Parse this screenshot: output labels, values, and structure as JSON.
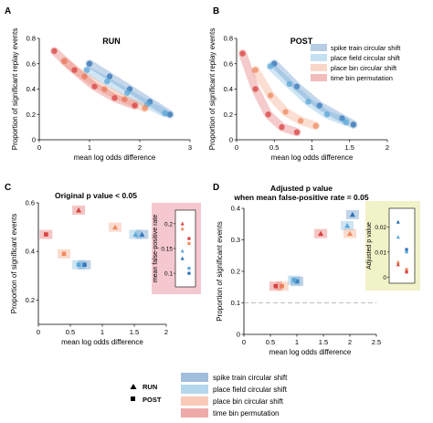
{
  "colors": {
    "spike": "#2e6fb3",
    "place_field": "#5aa7d8",
    "place_bin": "#ef8a5f",
    "time_bin": "#d94040",
    "inset_c_bg": "#f5c8cf",
    "inset_d_bg": "#f0f2c8"
  },
  "legend": {
    "series": [
      "spike train circular shift",
      "place field circular shift",
      "place bin circular shift",
      "time bin permutation"
    ],
    "markers": [
      "RUN",
      "POST"
    ],
    "marker_symbols": [
      "triangle",
      "square"
    ]
  },
  "chart_data": [
    {
      "panel": "A",
      "type": "scatter",
      "title": "RUN",
      "xlabel": "mean log odds difference",
      "ylabel": "Proportion of significant replay events",
      "xlim": [
        0,
        3
      ],
      "ylim": [
        0,
        0.8
      ],
      "xticks": [
        "0",
        "1",
        "2",
        "3"
      ],
      "yticks": [
        "0",
        "0.2",
        "0.4",
        "0.6",
        "0.8"
      ],
      "series": [
        {
          "name": "spike train circular shift",
          "x": [
            1.0,
            1.4,
            1.8,
            2.2,
            2.6
          ],
          "y": [
            0.6,
            0.5,
            0.4,
            0.3,
            0.2
          ]
        },
        {
          "name": "place field circular shift",
          "x": [
            0.95,
            1.35,
            1.75,
            2.15,
            2.5
          ],
          "y": [
            0.55,
            0.46,
            0.37,
            0.28,
            0.21
          ]
        },
        {
          "name": "place bin circular shift",
          "x": [
            0.5,
            0.9,
            1.3,
            1.7,
            2.1
          ],
          "y": [
            0.62,
            0.5,
            0.4,
            0.32,
            0.25
          ]
        },
        {
          "name": "time bin permutation",
          "x": [
            0.3,
            0.7,
            1.1,
            1.5,
            1.9
          ],
          "y": [
            0.7,
            0.55,
            0.42,
            0.33,
            0.27
          ]
        }
      ],
      "legend_position": "top-right"
    },
    {
      "panel": "B",
      "type": "scatter",
      "title": "POST",
      "xlabel": "mean log odds difference",
      "ylabel": "Proportion of significant replay events",
      "xlim": [
        0,
        2
      ],
      "ylim": [
        0,
        0.8
      ],
      "xticks": [
        "0",
        "0.5",
        "1",
        "1.5",
        "2"
      ],
      "yticks": [
        "0",
        "0.2",
        "0.4",
        "0.6",
        "0.8"
      ],
      "series": [
        {
          "name": "spike train circular shift",
          "x": [
            0.5,
            0.8,
            1.1,
            1.4,
            1.55
          ],
          "y": [
            0.6,
            0.42,
            0.27,
            0.17,
            0.12
          ]
        },
        {
          "name": "place field circular shift",
          "x": [
            0.45,
            0.7,
            0.95,
            1.2,
            1.45
          ],
          "y": [
            0.58,
            0.44,
            0.3,
            0.2,
            0.14
          ]
        },
        {
          "name": "place bin circular shift",
          "x": [
            0.25,
            0.45,
            0.65,
            0.85,
            1.05
          ],
          "y": [
            0.55,
            0.35,
            0.22,
            0.15,
            0.11
          ]
        },
        {
          "name": "time bin permutation",
          "x": [
            0.08,
            0.25,
            0.42,
            0.6,
            0.8
          ],
          "y": [
            0.68,
            0.4,
            0.2,
            0.1,
            0.06
          ]
        }
      ]
    },
    {
      "panel": "C",
      "type": "scatter",
      "title": "Original p value < 0.05",
      "xlabel": "mean log odds difference",
      "ylabel": "Proportion of significant events",
      "xlim": [
        0,
        2
      ],
      "ylim": [
        0.1,
        0.6
      ],
      "xticks": [
        "0",
        "0.5",
        "1",
        "1.5",
        "2"
      ],
      "yticks": [
        "0.2",
        "0.4",
        "0.6"
      ],
      "series": [
        {
          "name": "spike train circular shift",
          "x": [
            1.62,
            0.72
          ],
          "y": [
            0.47,
            0.345
          ],
          "marker": [
            "triangle",
            "square"
          ]
        },
        {
          "name": "place field circular shift",
          "x": [
            1.52,
            0.63
          ],
          "y": [
            0.47,
            0.345
          ],
          "marker": [
            "triangle",
            "square"
          ]
        },
        {
          "name": "place bin circular shift",
          "x": [
            1.2,
            0.4
          ],
          "y": [
            0.5,
            0.39
          ],
          "marker": [
            "triangle",
            "square"
          ]
        },
        {
          "name": "time bin permutation",
          "x": [
            0.63,
            0.12
          ],
          "y": [
            0.57,
            0.47
          ],
          "marker": [
            "triangle",
            "square"
          ]
        }
      ],
      "inset": {
        "ylabel": "mean false-positive rate",
        "yticks": [
          "0.1",
          "0.15",
          "0.2"
        ],
        "series": [
          {
            "name": "spike train circular shift",
            "values": [
              0.13,
              0.1
            ]
          },
          {
            "name": "place field circular shift",
            "values": [
              0.145,
              0.11
            ]
          },
          {
            "name": "place bin circular shift",
            "values": [
              0.19,
              0.16
            ]
          },
          {
            "name": "time bin permutation",
            "values": [
              0.2,
              0.17
            ]
          }
        ]
      }
    },
    {
      "panel": "D",
      "type": "scatter",
      "title": "Adjusted p value",
      "subtitle": "when mean false-positive rate = 0.05",
      "xlabel": "mean log odds difference",
      "ylabel": "Proportion of significant events",
      "xlim": [
        0,
        2.5
      ],
      "ylim": [
        0,
        0.4
      ],
      "xticks": [
        "0",
        "0.5",
        "1",
        "1.5",
        "2",
        "2.5"
      ],
      "yticks": [
        "0",
        "0.1",
        "0.2",
        "0.3",
        "0.4"
      ],
      "reference_line_y": 0.1,
      "series": [
        {
          "name": "spike train circular shift",
          "x": [
            2.05,
            1.0
          ],
          "y": [
            0.38,
            0.168
          ],
          "marker": [
            "triangle",
            "square"
          ]
        },
        {
          "name": "place field circular shift",
          "x": [
            1.95,
            0.95
          ],
          "y": [
            0.345,
            0.172
          ],
          "marker": [
            "triangle",
            "square"
          ]
        },
        {
          "name": "place bin circular shift",
          "x": [
            2.0,
            0.72
          ],
          "y": [
            0.32,
            0.153
          ],
          "marker": [
            "triangle",
            "square"
          ]
        },
        {
          "name": "time bin permutation",
          "x": [
            1.45,
            0.6
          ],
          "y": [
            0.32,
            0.153
          ],
          "marker": [
            "triangle",
            "square"
          ]
        }
      ],
      "inset": {
        "ylabel": "Adjusted p value",
        "yticks": [
          "0",
          "0.01",
          "0.02"
        ],
        "series": [
          {
            "name": "spike train circular shift",
            "values": [
              0.022,
              0.011
            ]
          },
          {
            "name": "place field circular shift",
            "values": [
              0.016,
              0.01
            ]
          },
          {
            "name": "place bin circular shift",
            "values": [
              0.006,
              0.003
            ]
          },
          {
            "name": "time bin permutation",
            "values": [
              0.005,
              0.002
            ]
          }
        ]
      }
    }
  ]
}
